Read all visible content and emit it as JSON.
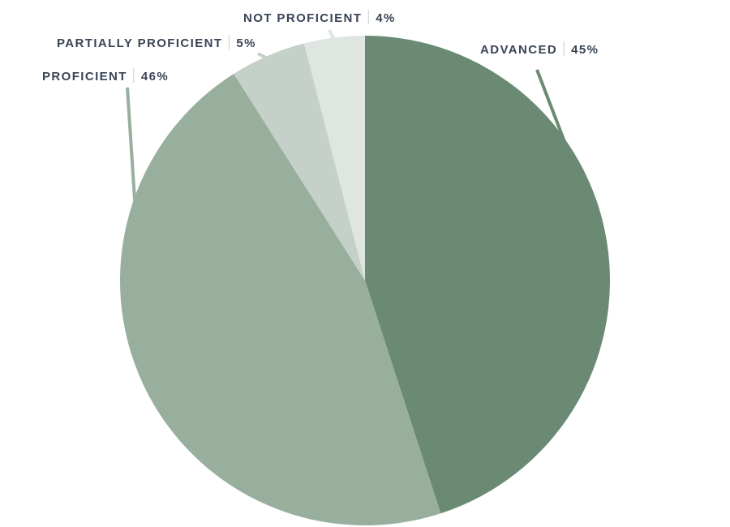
{
  "chart_data": {
    "type": "pie",
    "start_angle_deg": 0,
    "direction": "clockwise",
    "slices": [
      {
        "label": "ADVANCED",
        "value": 45,
        "value_label": "45%",
        "color": "#6b8a73"
      },
      {
        "label": "PROFICIENT",
        "value": 46,
        "value_label": "46%",
        "color": "#99af9e"
      },
      {
        "label": "PARTIALLY PROFICIENT",
        "value": 5,
        "value_label": "5%",
        "color": "#c5d0c8"
      },
      {
        "label": "NOT PROFICIENT",
        "value": 4,
        "value_label": "4%",
        "color": "#dfe6e1"
      }
    ],
    "label_color": "#3a4456",
    "legend": "none"
  }
}
